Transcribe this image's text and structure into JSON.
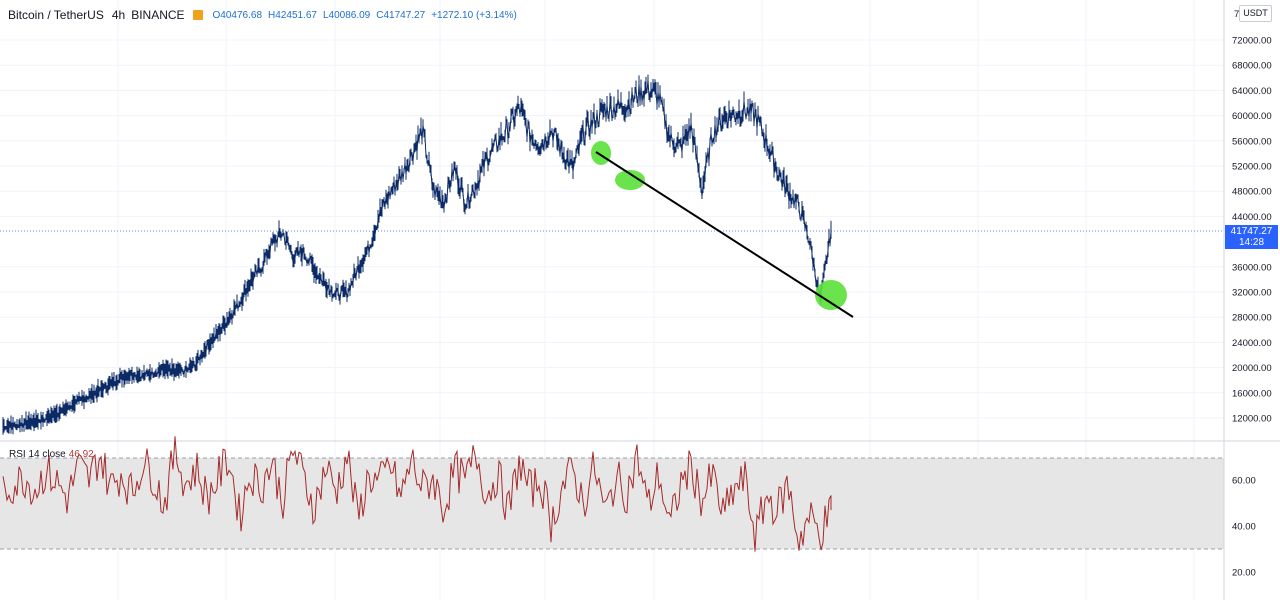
{
  "header": {
    "symbol": "Bitcoin / TetherUS",
    "separator": "/",
    "interval": "4h",
    "exchange": "BINANCE",
    "ohlc": {
      "open": "O40476.68",
      "high": "H42451.67",
      "low": "L40086.09",
      "close": "C41747.27",
      "change": "+1272.10 (+3.14%)"
    }
  },
  "price_axis": {
    "currency_button": "USDT",
    "top_partial_left": "7",
    "top_partial_right": "0",
    "ticks": [
      "72000.00",
      "68000.00",
      "64000.00",
      "60000.00",
      "56000.00",
      "52000.00",
      "48000.00",
      "44000.00",
      "36000.00",
      "32000.00",
      "28000.00",
      "24000.00",
      "20000.00",
      "16000.00",
      "12000.00"
    ],
    "last_price": "41747.27",
    "countdown": "14:28"
  },
  "rsi": {
    "label": "RSI 14 close",
    "value": "46.92",
    "ticks": [
      "60.00",
      "40.00",
      "20.00"
    ]
  },
  "colors": {
    "candle": "#0b2a66",
    "rsi_line": "#a52a2a",
    "band": "#e6e6e6",
    "highlight": "#5be03a",
    "trendline": "#000000",
    "price_box": "#2962ff"
  },
  "chart_data": {
    "type": "line",
    "title": "Bitcoin / TetherUS",
    "ylabel": "",
    "ylim": [
      10000,
      76000
    ],
    "series": [
      {
        "values": [
          10500,
          10700,
          11000,
          11300,
          11800,
          12600,
          13500,
          14600,
          15300,
          16200,
          17300,
          18300,
          18900,
          18600,
          19200,
          19600,
          19100,
          19400,
          20600,
          23400,
          25300,
          27800,
          30300,
          33500,
          35800,
          39500,
          41400,
          37500,
          38300,
          35300,
          33200,
          31500,
          31800,
          35700,
          38900,
          44200,
          47700,
          50300,
          53800,
          57600,
          48200,
          46300,
          51600,
          46100,
          48900,
          53200,
          55600,
          57900,
          61200,
          56800,
          55200,
          57800,
          54100,
          51500,
          57200,
          59200,
          60800,
          61300,
          61500,
          63300,
          64200,
          62800,
          56300,
          54800,
          58200,
          48000,
          57200,
          59600,
          60100,
          60800,
          59900,
          55800,
          51200,
          47800,
          45600,
          40100,
          30500,
          41700
        ],
        "high": 64800,
        "low": 29000
      },
      {
        "values": [
          55,
          58,
          61,
          56,
          64,
          59,
          52,
          66,
          60,
          71,
          57,
          63,
          54,
          68,
          62,
          49,
          73,
          58,
          65,
          52,
          61,
          70,
          44,
          63,
          57,
          68,
          51,
          74,
          60,
          48,
          66,
          55,
          71,
          43,
          62,
          58,
          67,
          52,
          69,
          56,
          61,
          47,
          65,
          59,
          72,
          53,
          63,
          46,
          68,
          55,
          60,
          41,
          57,
          64,
          50,
          66,
          45,
          61,
          54,
          70,
          48,
          63,
          39,
          58,
          66,
          51,
          62,
          44,
          56,
          60,
          35,
          53,
          47,
          58,
          34,
          44,
          37,
          47
        ],
        "ylim": [
          20,
          80
        ]
      }
    ],
    "annotations": {
      "trendline": "descending support line drawn through three touch points",
      "touch_points": 3
    }
  }
}
